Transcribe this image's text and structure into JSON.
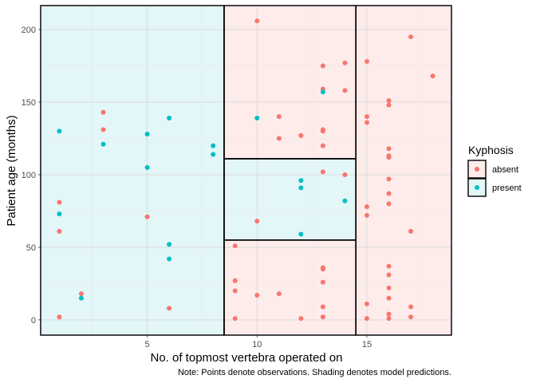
{
  "chart_data": {
    "type": "scatter",
    "title": "",
    "xlabel": "No. of topmost vertebra operated on",
    "ylabel": "Patient age (months)",
    "caption": "Note: Points denote observations. Shading denotes model predictions.",
    "xlim": [
      0.15,
      18.85
    ],
    "ylim": [
      -10.5,
      216.5
    ],
    "xticks": [
      5,
      10,
      15
    ],
    "xtick_labels": [
      "5",
      "10",
      "15"
    ],
    "yticks": [
      0,
      50,
      100,
      150,
      200
    ],
    "ytick_labels": [
      "0",
      "50",
      "100",
      "150",
      "200"
    ],
    "grid": true,
    "legend": {
      "title": "Kyphosis",
      "position": "right",
      "entries": [
        {
          "key": "absent",
          "label": "absent",
          "point_color": "#F8766D",
          "fill_color": "#fdecea"
        },
        {
          "key": "present",
          "label": "present",
          "point_color": "#00BFC4",
          "fill_color": "#e3f6f8"
        }
      ]
    },
    "regions": [
      {
        "prediction": "present",
        "x": [
          0.15,
          8.5
        ],
        "y": [
          -10.5,
          216.5
        ]
      },
      {
        "prediction": "absent",
        "x": [
          8.5,
          14.5
        ],
        "y": [
          111,
          216.5
        ]
      },
      {
        "prediction": "present",
        "x": [
          8.5,
          14.5
        ],
        "y": [
          55,
          111
        ]
      },
      {
        "prediction": "absent",
        "x": [
          8.5,
          14.5
        ],
        "y": [
          -10.5,
          55
        ]
      },
      {
        "prediction": "absent",
        "x": [
          14.5,
          18.85
        ],
        "y": [
          -10.5,
          216.5
        ]
      }
    ],
    "series": [
      {
        "name": "absent",
        "color": "#F8766D",
        "points": [
          [
            1,
            81
          ],
          [
            1,
            61
          ],
          [
            1,
            2
          ],
          [
            2,
            18
          ],
          [
            3,
            143
          ],
          [
            3,
            131
          ],
          [
            5,
            71
          ],
          [
            6,
            8
          ],
          [
            9,
            51
          ],
          [
            9,
            27
          ],
          [
            9,
            20
          ],
          [
            9,
            1
          ],
          [
            10,
            206
          ],
          [
            10,
            68
          ],
          [
            10,
            17
          ],
          [
            11,
            140
          ],
          [
            11,
            125
          ],
          [
            11,
            18
          ],
          [
            12,
            127
          ],
          [
            12,
            1
          ],
          [
            13,
            175
          ],
          [
            13,
            159
          ],
          [
            13,
            131
          ],
          [
            13,
            130
          ],
          [
            13,
            120
          ],
          [
            13,
            102
          ],
          [
            13,
            36
          ],
          [
            13,
            35
          ],
          [
            13,
            26
          ],
          [
            13,
            9
          ],
          [
            13,
            2
          ],
          [
            14,
            177
          ],
          [
            14,
            158
          ],
          [
            14,
            100
          ],
          [
            15,
            178
          ],
          [
            15,
            140
          ],
          [
            15,
            136
          ],
          [
            15,
            78
          ],
          [
            15,
            72
          ],
          [
            15,
            11
          ],
          [
            15,
            1
          ],
          [
            16,
            151
          ],
          [
            16,
            148
          ],
          [
            16,
            118
          ],
          [
            16,
            113
          ],
          [
            16,
            112
          ],
          [
            16,
            97
          ],
          [
            16,
            87
          ],
          [
            16,
            80
          ],
          [
            16,
            37
          ],
          [
            16,
            31
          ],
          [
            16,
            22
          ],
          [
            16,
            15
          ],
          [
            16,
            4
          ],
          [
            16,
            1
          ],
          [
            17,
            195
          ],
          [
            17,
            61
          ],
          [
            17,
            9
          ],
          [
            17,
            2
          ],
          [
            18,
            168
          ]
        ]
      },
      {
        "name": "present",
        "color": "#00BFC4",
        "points": [
          [
            1,
            130
          ],
          [
            1,
            73
          ],
          [
            2,
            15
          ],
          [
            3,
            121
          ],
          [
            5,
            128
          ],
          [
            5,
            105
          ],
          [
            6,
            139
          ],
          [
            6,
            52
          ],
          [
            6,
            42
          ],
          [
            8,
            120
          ],
          [
            8,
            114
          ],
          [
            10,
            139
          ],
          [
            12,
            96
          ],
          [
            12,
            91
          ],
          [
            12,
            59
          ],
          [
            13,
            157
          ],
          [
            14,
            82
          ]
        ]
      }
    ]
  }
}
